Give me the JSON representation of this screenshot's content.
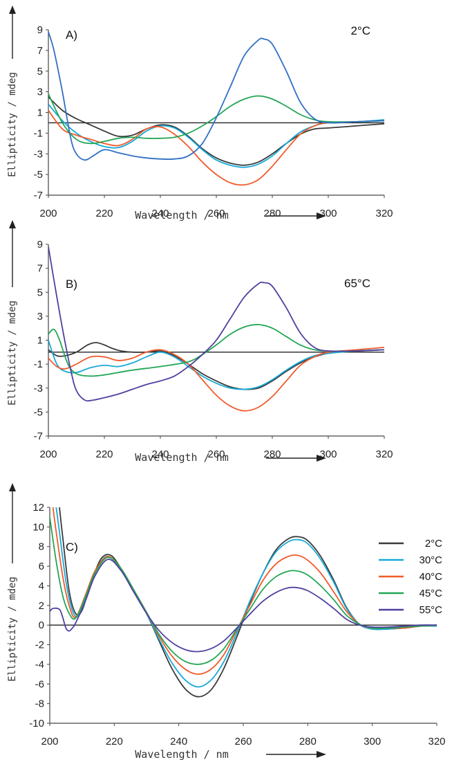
{
  "colors": {
    "2C": "#3a3a3a",
    "30C": "#17a9d8",
    "40C": "#f25a2b",
    "45C": "#22a654",
    "55C": "#4f3fa0",
    "blue": "#2f6fc4",
    "axis": "#444444"
  },
  "chart_data": [
    {
      "type": "line",
      "panel_label": "A)",
      "temperature": "2°C",
      "xlabel": "Wavelength / nm",
      "ylabel": "Ellipticity / mdeg",
      "xlim": [
        200,
        320
      ],
      "ylim": [
        -7,
        9
      ],
      "xticks": [
        "200",
        "220",
        "240",
        "260",
        "280",
        "300",
        "320"
      ],
      "yticks": [
        "9",
        "7",
        "5",
        "3",
        "1",
        "-1",
        "-3",
        "-5",
        "-7"
      ],
      "series": [
        {
          "color_key": "2C",
          "x": [
            200,
            205,
            210,
            215,
            220,
            225,
            230,
            235,
            240,
            245,
            250,
            255,
            260,
            265,
            270,
            275,
            280,
            285,
            290,
            295,
            300,
            310,
            320
          ],
          "y": [
            2.5,
            1.2,
            0.4,
            -0.2,
            -0.8,
            -1.3,
            -1.2,
            -0.6,
            -0.2,
            -0.4,
            -1.3,
            -2.5,
            -3.4,
            -3.9,
            -4.1,
            -3.8,
            -3.0,
            -2.0,
            -1.1,
            -0.6,
            -0.5,
            -0.3,
            -0.1
          ]
        },
        {
          "color_key": "30C",
          "x": [
            200,
            205,
            210,
            215,
            220,
            225,
            230,
            235,
            240,
            245,
            250,
            255,
            260,
            265,
            270,
            275,
            280,
            285,
            290,
            295,
            300,
            310,
            320
          ],
          "y": [
            1.8,
            0.2,
            -1.0,
            -1.8,
            -2.3,
            -2.4,
            -1.8,
            -0.8,
            -0.3,
            -0.5,
            -1.4,
            -2.6,
            -3.6,
            -4.1,
            -4.3,
            -4.0,
            -3.2,
            -2.0,
            -0.9,
            -0.3,
            0.0,
            0.1,
            0.3
          ]
        },
        {
          "color_key": "40C",
          "x": [
            200,
            205,
            210,
            215,
            220,
            225,
            230,
            235,
            240,
            245,
            250,
            255,
            260,
            265,
            270,
            275,
            280,
            285,
            290,
            295,
            300,
            310,
            320
          ],
          "y": [
            1.2,
            -0.6,
            -1.2,
            -1.6,
            -2.0,
            -2.2,
            -1.6,
            -0.6,
            -0.4,
            -1.1,
            -2.3,
            -3.8,
            -5.0,
            -5.8,
            -6.0,
            -5.5,
            -4.2,
            -2.6,
            -1.1,
            -0.3,
            0.0,
            0.1,
            0.2
          ]
        },
        {
          "color_key": "45C",
          "x": [
            200,
            205,
            210,
            215,
            220,
            225,
            230,
            235,
            240,
            245,
            250,
            255,
            260,
            265,
            270,
            275,
            280,
            285,
            290,
            295,
            300,
            310,
            320
          ],
          "y": [
            2.8,
            0.0,
            -1.6,
            -2.0,
            -1.8,
            -1.5,
            -1.4,
            -1.5,
            -1.5,
            -1.4,
            -1.0,
            -0.3,
            0.6,
            1.6,
            2.3,
            2.6,
            2.3,
            1.6,
            0.8,
            0.3,
            0.1,
            0.1,
            0.2
          ]
        },
        {
          "color_key": "blue",
          "x": [
            200,
            202,
            205,
            208,
            210,
            213,
            216,
            220,
            225,
            230,
            235,
            240,
            245,
            250,
            255,
            260,
            265,
            270,
            275,
            277,
            280,
            285,
            290,
            295,
            300,
            310,
            320
          ],
          "y": [
            8.8,
            7.0,
            3.0,
            -1.5,
            -3.0,
            -3.6,
            -3.2,
            -2.6,
            -2.9,
            -3.2,
            -3.4,
            -3.5,
            -3.5,
            -3.2,
            -2.0,
            0.5,
            3.5,
            6.5,
            8.0,
            8.1,
            7.6,
            5.0,
            2.0,
            0.4,
            0.0,
            0.1,
            0.2
          ]
        }
      ]
    },
    {
      "type": "line",
      "panel_label": "B)",
      "temperature": "65°C",
      "xlabel": "Wavelength / nm",
      "ylabel": "Ellipticity / mdeg",
      "xlim": [
        200,
        320
      ],
      "ylim": [
        -7,
        9
      ],
      "xticks": [
        "200",
        "220",
        "240",
        "260",
        "280",
        "300",
        "320"
      ],
      "yticks": [
        "9",
        "7",
        "5",
        "3",
        "1",
        "-1",
        "-3",
        "-5",
        "-7"
      ],
      "series": [
        {
          "color_key": "2C",
          "x": [
            200,
            203,
            206,
            210,
            214,
            217,
            220,
            223,
            226,
            230,
            235,
            240,
            245,
            250,
            255,
            260,
            265,
            270,
            275,
            280,
            285,
            290,
            295,
            300,
            310,
            320
          ],
          "y": [
            0.2,
            -0.3,
            -0.3,
            0.0,
            0.6,
            0.8,
            0.6,
            0.3,
            0.1,
            0.0,
            0.0,
            0.1,
            -0.3,
            -1.0,
            -1.8,
            -2.4,
            -2.9,
            -3.1,
            -3.0,
            -2.4,
            -1.6,
            -0.9,
            -0.4,
            -0.1,
            0.1,
            0.2
          ]
        },
        {
          "color_key": "30C",
          "x": [
            200,
            203,
            206,
            210,
            215,
            220,
            225,
            230,
            235,
            240,
            245,
            250,
            255,
            260,
            265,
            270,
            275,
            280,
            285,
            290,
            295,
            300,
            310,
            320
          ],
          "y": [
            1.0,
            -1.0,
            -1.6,
            -1.7,
            -1.3,
            -1.1,
            -1.2,
            -0.9,
            -0.4,
            0.0,
            -0.4,
            -1.2,
            -2.0,
            -2.6,
            -3.0,
            -3.1,
            -2.9,
            -2.3,
            -1.5,
            -0.8,
            -0.3,
            -0.1,
            0.1,
            0.2
          ]
        },
        {
          "color_key": "40C",
          "x": [
            200,
            203,
            206,
            210,
            215,
            220,
            225,
            230,
            235,
            240,
            245,
            250,
            255,
            260,
            265,
            270,
            275,
            280,
            285,
            290,
            295,
            300,
            310,
            320
          ],
          "y": [
            -0.5,
            -1.2,
            -1.4,
            -1.0,
            -0.4,
            -0.4,
            -0.7,
            -0.5,
            0.0,
            0.2,
            -0.2,
            -1.0,
            -2.3,
            -3.6,
            -4.5,
            -4.9,
            -4.6,
            -3.7,
            -2.4,
            -1.1,
            -0.4,
            0.0,
            0.2,
            0.4
          ]
        },
        {
          "color_key": "45C",
          "x": [
            200,
            202,
            204,
            207,
            210,
            215,
            220,
            225,
            230,
            240,
            250,
            255,
            260,
            265,
            270,
            275,
            280,
            285,
            290,
            295,
            300,
            310,
            320
          ],
          "y": [
            1.5,
            1.9,
            1.0,
            -1.0,
            -1.8,
            -2.0,
            -1.9,
            -1.7,
            -1.5,
            -1.2,
            -0.8,
            -0.2,
            0.6,
            1.5,
            2.1,
            2.3,
            2.0,
            1.3,
            0.6,
            0.2,
            0.1,
            0.1,
            0.2
          ]
        },
        {
          "color_key": "55C",
          "x": [
            200,
            202,
            205,
            208,
            210,
            213,
            216,
            220,
            225,
            230,
            235,
            240,
            245,
            250,
            255,
            260,
            265,
            270,
            275,
            277,
            280,
            285,
            290,
            295,
            300,
            310,
            320
          ],
          "y": [
            8.8,
            6.0,
            2.0,
            -1.5,
            -3.2,
            -4.0,
            -4.0,
            -3.8,
            -3.5,
            -3.1,
            -2.7,
            -2.4,
            -2.0,
            -1.2,
            -0.2,
            1.0,
            2.8,
            4.6,
            5.7,
            5.8,
            5.5,
            3.7,
            1.6,
            0.4,
            0.1,
            0.1,
            0.2
          ]
        }
      ]
    },
    {
      "type": "line",
      "panel_label": "C)",
      "xlabel": "Wavelength / nm",
      "ylabel": "Ellipticity / mdeg",
      "xlim": [
        200,
        320
      ],
      "ylim": [
        -10,
        12
      ],
      "xticks": [
        "200",
        "220",
        "240",
        "260",
        "280",
        "300",
        "320"
      ],
      "yticks": [
        "12",
        "10",
        "8",
        "6",
        "4",
        "2",
        "0",
        "-2",
        "-4",
        "-6",
        "-8",
        "-10"
      ],
      "legend": [
        "2°C",
        "30°C",
        "40°C",
        "45°C",
        "55°C"
      ],
      "series": [
        {
          "name": "2°C",
          "color_key": "2C",
          "x": [
            203,
            204,
            206,
            208,
            210,
            213,
            216,
            219,
            222,
            226,
            230,
            234,
            238,
            242,
            246,
            250,
            254,
            258,
            262,
            266,
            270,
            274,
            277,
            280,
            284,
            288,
            292,
            296,
            300,
            305,
            310,
            315,
            320
          ],
          "y": [
            12.0,
            9.0,
            3.5,
            1.2,
            1.5,
            4.5,
            6.8,
            7.1,
            5.8,
            3.6,
            1.2,
            -1.7,
            -4.5,
            -6.5,
            -7.3,
            -6.6,
            -4.4,
            -1.2,
            2.2,
            5.2,
            7.6,
            8.8,
            9.0,
            8.6,
            7.0,
            4.6,
            1.8,
            0.1,
            -0.4,
            -0.4,
            -0.3,
            -0.1,
            -0.1
          ]
        },
        {
          "name": "30°C",
          "color_key": "30C",
          "x": [
            202,
            203,
            205,
            207,
            209,
            212,
            215,
            218,
            222,
            226,
            230,
            234,
            238,
            242,
            246,
            250,
            254,
            258,
            262,
            266,
            270,
            274,
            277,
            280,
            284,
            288,
            292,
            296,
            300,
            305,
            310,
            315,
            320
          ],
          "y": [
            12.0,
            9.5,
            4.5,
            1.5,
            1.0,
            3.5,
            6.0,
            7.0,
            5.8,
            3.6,
            1.2,
            -1.5,
            -3.9,
            -5.6,
            -6.3,
            -5.6,
            -3.7,
            -0.8,
            2.4,
            5.2,
            7.4,
            8.5,
            8.7,
            8.3,
            6.7,
            4.4,
            1.7,
            0.1,
            -0.4,
            -0.4,
            -0.3,
            -0.1,
            -0.1
          ]
        },
        {
          "name": "40°C",
          "color_key": "40C",
          "x": [
            201,
            202,
            204,
            206,
            208,
            211,
            214,
            218,
            222,
            226,
            230,
            234,
            238,
            242,
            246,
            250,
            254,
            258,
            262,
            266,
            270,
            274,
            277,
            280,
            284,
            288,
            292,
            296,
            300,
            305,
            310,
            315,
            320
          ],
          "y": [
            12.0,
            9.5,
            5.0,
            2.0,
            0.8,
            3.0,
            5.5,
            7.0,
            5.8,
            3.6,
            1.3,
            -1.2,
            -3.2,
            -4.5,
            -5.0,
            -4.5,
            -3.0,
            -0.5,
            2.0,
            4.5,
            6.2,
            7.0,
            7.1,
            6.6,
            5.3,
            3.4,
            1.4,
            0.1,
            -0.3,
            -0.3,
            -0.3,
            -0.1,
            0.0
          ]
        },
        {
          "name": "45°C",
          "color_key": "45C",
          "x": [
            200,
            202,
            204,
            206,
            208,
            211,
            214,
            218,
            222,
            226,
            230,
            234,
            238,
            242,
            246,
            250,
            254,
            258,
            262,
            266,
            270,
            274,
            277,
            280,
            284,
            288,
            292,
            296,
            300,
            305,
            310,
            315,
            320
          ],
          "y": [
            11.0,
            6.5,
            3.0,
            1.2,
            0.7,
            2.8,
            5.3,
            6.9,
            5.8,
            3.6,
            1.3,
            -1.0,
            -2.7,
            -3.7,
            -4.0,
            -3.6,
            -2.4,
            -0.4,
            1.6,
            3.6,
            4.9,
            5.5,
            5.5,
            5.1,
            4.0,
            2.6,
            1.0,
            0.1,
            -0.3,
            -0.3,
            -0.2,
            -0.1,
            0.0
          ]
        },
        {
          "name": "55°C",
          "color_key": "55C",
          "x": [
            200,
            201,
            203,
            204,
            205,
            206,
            207,
            208,
            211,
            214,
            218,
            222,
            226,
            230,
            234,
            238,
            242,
            246,
            250,
            254,
            258,
            262,
            266,
            270,
            274,
            277,
            280,
            284,
            288,
            292,
            296,
            300,
            305,
            310,
            315,
            320
          ],
          "y": [
            1.4,
            1.7,
            1.6,
            0.8,
            -0.3,
            -0.6,
            -0.3,
            0.2,
            2.4,
            5.0,
            6.7,
            5.6,
            3.4,
            1.2,
            -0.6,
            -1.8,
            -2.5,
            -2.7,
            -2.4,
            -1.6,
            -0.3,
            1.1,
            2.4,
            3.3,
            3.8,
            3.8,
            3.5,
            2.7,
            1.7,
            0.6,
            0.0,
            -0.2,
            -0.2,
            -0.1,
            0.0,
            0.0
          ]
        }
      ]
    }
  ]
}
